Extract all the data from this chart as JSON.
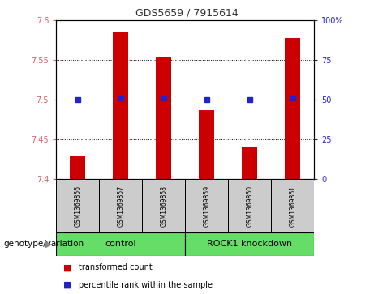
{
  "title": "GDS5659 / 7915614",
  "samples": [
    "GSM1369856",
    "GSM1369857",
    "GSM1369858",
    "GSM1369859",
    "GSM1369860",
    "GSM1369861"
  ],
  "bar_values": [
    7.43,
    7.585,
    7.555,
    7.487,
    7.44,
    7.578
  ],
  "percentile_y2": [
    50,
    51,
    51,
    50,
    50,
    51
  ],
  "bar_base": 7.4,
  "ylim": [
    7.4,
    7.6
  ],
  "y2lim": [
    0,
    100
  ],
  "yticks": [
    7.4,
    7.45,
    7.5,
    7.55,
    7.6
  ],
  "ytick_labels": [
    "7.4",
    "7.45",
    "7.5",
    "7.55",
    "7.6"
  ],
  "y2ticks": [
    0,
    25,
    50,
    75,
    100
  ],
  "y2tick_labels": [
    "0",
    "25",
    "50",
    "75",
    "100"
  ],
  "grid_yticks": [
    7.45,
    7.5,
    7.55
  ],
  "bar_color": "#cc0000",
  "percentile_color": "#2222cc",
  "grid_color": "#000000",
  "groups": [
    {
      "label": "control",
      "start": 0,
      "end": 3,
      "color": "#66dd66"
    },
    {
      "label": "ROCK1 knockdown",
      "start": 3,
      "end": 6,
      "color": "#66dd66"
    }
  ],
  "genotype_label": "genotype/variation",
  "legend_items": [
    {
      "label": "transformed count",
      "color": "#cc0000"
    },
    {
      "label": "percentile rank within the sample",
      "color": "#2222cc"
    }
  ],
  "left_tick_color": "#cc6666",
  "right_tick_color": "#2222cc",
  "sample_box_color": "#cccccc",
  "background_color": "#ffffff",
  "bar_width": 0.35,
  "title_fontsize": 9,
  "tick_fontsize": 7,
  "sample_fontsize": 5.5,
  "group_fontsize": 8,
  "legend_fontsize": 7,
  "genotype_fontsize": 7.5
}
